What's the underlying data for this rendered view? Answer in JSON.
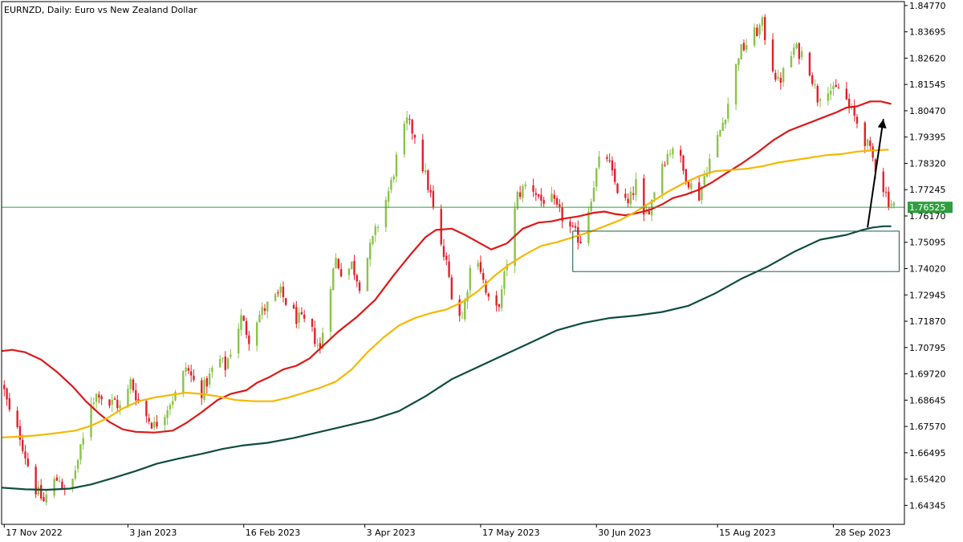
{
  "header": {
    "symbol_title": "EURNZD, Daily:  Euro vs New Zealand Dollar"
  },
  "colors": {
    "bull": "#8bc34a",
    "bear": "#e0212b",
    "ma_fast": "#dd1818",
    "ma_mid": "#f5b800",
    "ma_slow": "#0f4d3f",
    "price_line": "#2e9e3e",
    "price_tag_bg": "#2e9e3e",
    "arrow": "#000000",
    "zone_border": "#1c5a48"
  },
  "chart_data": {
    "type": "candlestick",
    "y_axis_ticks": [
      "1.84770",
      "1.83695",
      "1.82620",
      "1.81545",
      "1.80470",
      "1.79395",
      "1.78320",
      "1.77245",
      "1.76170",
      "1.75095",
      "1.74020",
      "1.72945",
      "1.71870",
      "1.70795",
      "1.69720",
      "1.68645",
      "1.67570",
      "1.66495",
      "1.65420",
      "1.64345"
    ],
    "ylim": [
      1.6357,
      1.8493
    ],
    "x_axis_labels": [
      {
        "label": "17 Nov 2022",
        "day": 0
      },
      {
        "label": "3 Jan 2023",
        "day": 47
      },
      {
        "label": "16 Feb 2023",
        "day": 91
      },
      {
        "label": "3 Apr 2023",
        "day": 137
      },
      {
        "label": "17 May 2023",
        "day": 181
      },
      {
        "label": "30 Jun 2023",
        "day": 225
      },
      {
        "label": "15 Aug 2023",
        "day": 271
      },
      {
        "label": "28 Sep 2023",
        "day": 315
      }
    ],
    "xlim_days": [
      -1,
      342
    ],
    "current_price": "1.76525",
    "close_path": [
      [
        0,
        1.69
      ],
      [
        3,
        1.677
      ],
      [
        6,
        1.672
      ],
      [
        9,
        1.66
      ],
      [
        12,
        1.65
      ],
      [
        15,
        1.645
      ],
      [
        18,
        1.652
      ],
      [
        21,
        1.655
      ],
      [
        24,
        1.645
      ],
      [
        27,
        1.658
      ],
      [
        30,
        1.67
      ],
      [
        33,
        1.686
      ],
      [
        36,
        1.69
      ],
      [
        39,
        1.684
      ],
      [
        42,
        1.686
      ],
      [
        45,
        1.682
      ],
      [
        48,
        1.694
      ],
      [
        51,
        1.686
      ],
      [
        54,
        1.68
      ],
      [
        57,
        1.676
      ],
      [
        60,
        1.68
      ],
      [
        63,
        1.686
      ],
      [
        66,
        1.69
      ],
      [
        69,
        1.7
      ],
      [
        72,
        1.694
      ],
      [
        75,
        1.69
      ],
      [
        78,
        1.696
      ],
      [
        81,
        1.704
      ],
      [
        84,
        1.7
      ],
      [
        87,
        1.71
      ],
      [
        90,
        1.72
      ],
      [
        93,
        1.712
      ],
      [
        96,
        1.72
      ],
      [
        99,
        1.724
      ],
      [
        102,
        1.727
      ],
      [
        105,
        1.73
      ],
      [
        108,
        1.725
      ],
      [
        111,
        1.72
      ],
      [
        114,
        1.718
      ],
      [
        117,
        1.714
      ],
      [
        120,
        1.707
      ],
      [
        123,
        1.73
      ],
      [
        126,
        1.744
      ],
      [
        129,
        1.737
      ],
      [
        132,
        1.742
      ],
      [
        135,
        1.734
      ],
      [
        138,
        1.745
      ],
      [
        141,
        1.755
      ],
      [
        144,
        1.765
      ],
      [
        147,
        1.775
      ],
      [
        150,
        1.79
      ],
      [
        153,
        1.8
      ],
      [
        156,
        1.795
      ],
      [
        159,
        1.782
      ],
      [
        162,
        1.77
      ],
      [
        165,
        1.752
      ],
      [
        168,
        1.742
      ],
      [
        171,
        1.725
      ],
      [
        174,
        1.72
      ],
      [
        177,
        1.74
      ],
      [
        180,
        1.745
      ],
      [
        183,
        1.73
      ],
      [
        186,
        1.72
      ],
      [
        189,
        1.73
      ],
      [
        192,
        1.75
      ],
      [
        195,
        1.77
      ],
      [
        198,
        1.774
      ],
      [
        201,
        1.773
      ],
      [
        204,
        1.768
      ],
      [
        207,
        1.77
      ],
      [
        210,
        1.764
      ],
      [
        213,
        1.76
      ],
      [
        216,
        1.755
      ],
      [
        219,
        1.752
      ],
      [
        222,
        1.765
      ],
      [
        225,
        1.78
      ],
      [
        228,
        1.79
      ],
      [
        231,
        1.778
      ],
      [
        234,
        1.77
      ],
      [
        237,
        1.766
      ],
      [
        240,
        1.775
      ],
      [
        243,
        1.76
      ],
      [
        246,
        1.768
      ],
      [
        249,
        1.782
      ],
      [
        252,
        1.787
      ],
      [
        255,
        1.792
      ],
      [
        258,
        1.78
      ],
      [
        261,
        1.774
      ],
      [
        264,
        1.77
      ],
      [
        267,
        1.782
      ],
      [
        270,
        1.79
      ],
      [
        273,
        1.8
      ],
      [
        276,
        1.812
      ],
      [
        279,
        1.828
      ],
      [
        282,
        1.832
      ],
      [
        285,
        1.836
      ],
      [
        288,
        1.84
      ],
      [
        291,
        1.826
      ],
      [
        294,
        1.816
      ],
      [
        297,
        1.822
      ],
      [
        300,
        1.83
      ],
      [
        303,
        1.828
      ],
      [
        306,
        1.822
      ],
      [
        309,
        1.81
      ],
      [
        312,
        1.816
      ],
      [
        315,
        1.812
      ],
      [
        318,
        1.815
      ],
      [
        321,
        1.806
      ],
      [
        324,
        1.8
      ],
      [
        327,
        1.793
      ],
      [
        330,
        1.785
      ],
      [
        333,
        1.776
      ],
      [
        336,
        1.768
      ],
      [
        339,
        1.7652
      ]
    ],
    "series": [
      {
        "name": "",
        "color_key": "ma_fast",
        "points": [
          [
            -1,
            1.7065
          ],
          [
            3,
            1.707
          ],
          [
            8,
            1.706
          ],
          [
            14,
            1.703
          ],
          [
            20,
            1.698
          ],
          [
            26,
            1.692
          ],
          [
            31,
            1.686
          ],
          [
            36,
            1.681
          ],
          [
            40,
            1.6775
          ],
          [
            45,
            1.6745
          ],
          [
            50,
            1.6735
          ],
          [
            57,
            1.6732
          ],
          [
            64,
            1.674
          ],
          [
            69,
            1.677
          ],
          [
            75,
            1.6815
          ],
          [
            81,
            1.6865
          ],
          [
            86,
            1.689
          ],
          [
            92,
            1.6905
          ],
          [
            96,
            1.6935
          ],
          [
            101,
            1.696
          ],
          [
            106,
            1.699
          ],
          [
            111,
            1.7005
          ],
          [
            116,
            1.7035
          ],
          [
            121,
            1.7085
          ],
          [
            127,
            1.7145
          ],
          [
            134,
            1.7205
          ],
          [
            141,
            1.7275
          ],
          [
            148,
            1.7375
          ],
          [
            154,
            1.7455
          ],
          [
            160,
            1.753
          ],
          [
            164,
            1.756
          ],
          [
            170,
            1.7565
          ],
          [
            175,
            1.754
          ],
          [
            180,
            1.751
          ],
          [
            185,
            1.748
          ],
          [
            191,
            1.7505
          ],
          [
            197,
            1.7565
          ],
          [
            203,
            1.759
          ],
          [
            208,
            1.7595
          ],
          [
            212,
            1.7605
          ],
          [
            218,
            1.7615
          ],
          [
            224,
            1.763
          ],
          [
            228,
            1.7635
          ],
          [
            232,
            1.7625
          ],
          [
            236,
            1.762
          ],
          [
            241,
            1.763
          ],
          [
            246,
            1.7645
          ],
          [
            250,
            1.7665
          ],
          [
            254,
            1.769
          ],
          [
            259,
            1.7705
          ],
          [
            264,
            1.7725
          ],
          [
            269,
            1.7755
          ],
          [
            274,
            1.779
          ],
          [
            280,
            1.783
          ],
          [
            286,
            1.7875
          ],
          [
            292,
            1.7925
          ],
          [
            298,
            1.7965
          ],
          [
            304,
            1.799
          ],
          [
            310,
            1.8015
          ],
          [
            316,
            1.804
          ],
          [
            320,
            1.806
          ],
          [
            324,
            1.8065
          ],
          [
            329,
            1.8085
          ],
          [
            333,
            1.8085
          ],
          [
            337,
            1.8075
          ]
        ]
      },
      {
        "name": "",
        "color_key": "ma_mid",
        "points": [
          [
            -1,
            1.6712
          ],
          [
            5,
            1.6715
          ],
          [
            12,
            1.672
          ],
          [
            20,
            1.673
          ],
          [
            27,
            1.674
          ],
          [
            33,
            1.676
          ],
          [
            39,
            1.679
          ],
          [
            45,
            1.683
          ],
          [
            51,
            1.686
          ],
          [
            57,
            1.6875
          ],
          [
            63,
            1.6885
          ],
          [
            69,
            1.6895
          ],
          [
            75,
            1.689
          ],
          [
            81,
            1.688
          ],
          [
            88,
            1.6865
          ],
          [
            95,
            1.686
          ],
          [
            102,
            1.686
          ],
          [
            108,
            1.6875
          ],
          [
            114,
            1.6895
          ],
          [
            120,
            1.6915
          ],
          [
            126,
            1.694
          ],
          [
            132,
            1.699
          ],
          [
            138,
            1.706
          ],
          [
            144,
            1.712
          ],
          [
            150,
            1.717
          ],
          [
            156,
            1.72
          ],
          [
            162,
            1.722
          ],
          [
            168,
            1.7235
          ],
          [
            174,
            1.7265
          ],
          [
            180,
            1.731
          ],
          [
            186,
            1.737
          ],
          [
            192,
            1.742
          ],
          [
            198,
            1.746
          ],
          [
            204,
            1.7495
          ],
          [
            210,
            1.751
          ],
          [
            216,
            1.753
          ],
          [
            222,
            1.755
          ],
          [
            228,
            1.7575
          ],
          [
            234,
            1.76
          ],
          [
            240,
            1.7635
          ],
          [
            246,
            1.7675
          ],
          [
            252,
            1.7715
          ],
          [
            258,
            1.775
          ],
          [
            264,
            1.778
          ],
          [
            270,
            1.78
          ],
          [
            276,
            1.7805
          ],
          [
            282,
            1.781
          ],
          [
            288,
            1.782
          ],
          [
            294,
            1.7835
          ],
          [
            300,
            1.7845
          ],
          [
            306,
            1.7855
          ],
          [
            312,
            1.7865
          ],
          [
            318,
            1.787
          ],
          [
            324,
            1.788
          ],
          [
            330,
            1.7885
          ],
          [
            336,
            1.7888
          ]
        ]
      },
      {
        "name": "",
        "color_key": "ma_slow",
        "points": [
          [
            -1,
            1.6507
          ],
          [
            8,
            1.65
          ],
          [
            16,
            1.6498
          ],
          [
            25,
            1.6503
          ],
          [
            33,
            1.652
          ],
          [
            41,
            1.6545
          ],
          [
            50,
            1.6575
          ],
          [
            58,
            1.6605
          ],
          [
            66,
            1.6625
          ],
          [
            75,
            1.6645
          ],
          [
            83,
            1.6665
          ],
          [
            91,
            1.668
          ],
          [
            100,
            1.669
          ],
          [
            110,
            1.671
          ],
          [
            120,
            1.6735
          ],
          [
            130,
            1.676
          ],
          [
            140,
            1.6785
          ],
          [
            150,
            1.682
          ],
          [
            160,
            1.688
          ],
          [
            170,
            1.695
          ],
          [
            180,
            1.7
          ],
          [
            190,
            1.705
          ],
          [
            200,
            1.71
          ],
          [
            210,
            1.715
          ],
          [
            220,
            1.718
          ],
          [
            230,
            1.72
          ],
          [
            240,
            1.721
          ],
          [
            250,
            1.7225
          ],
          [
            260,
            1.725
          ],
          [
            270,
            1.73
          ],
          [
            280,
            1.736
          ],
          [
            290,
            1.741
          ],
          [
            300,
            1.747
          ],
          [
            310,
            1.752
          ],
          [
            320,
            1.754
          ],
          [
            326,
            1.756
          ],
          [
            330,
            1.757
          ],
          [
            334,
            1.7575
          ],
          [
            337,
            1.7575
          ]
        ]
      }
    ],
    "annotations": {
      "support_zone": {
        "day_start": 216,
        "day_end": 340,
        "price_top": 1.7555,
        "price_bottom": 1.739
      },
      "arrow": {
        "from_day": 328,
        "from_price": 1.757,
        "to_day": 334,
        "to_price": 1.8013
      }
    },
    "grid": false,
    "legend": "none"
  }
}
